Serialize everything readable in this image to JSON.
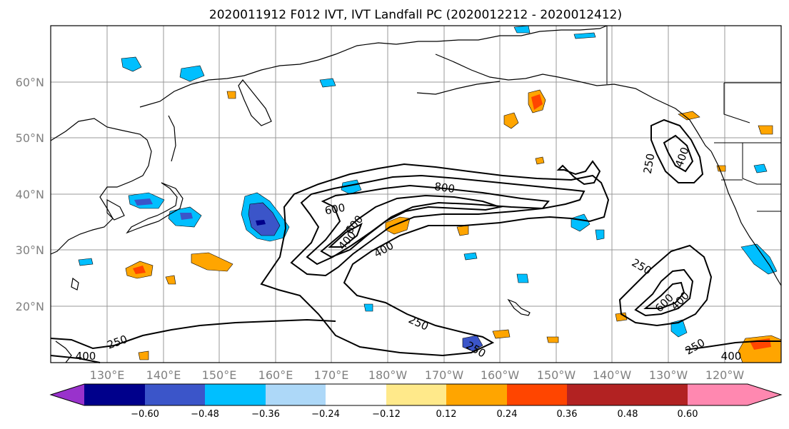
{
  "title": "2020011912 F012 IVT, IVT Landfall PC (2020012212 - 2020012412)",
  "map": {
    "lat_labels": [
      "60°N",
      "50°N",
      "40°N",
      "30°N",
      "20°N"
    ],
    "lon_labels": [
      "130°E",
      "140°E",
      "150°E",
      "160°E",
      "170°E",
      "180°W",
      "170°W",
      "160°W",
      "150°W",
      "140°W",
      "130°W",
      "120°W"
    ],
    "grid": true,
    "contour_levels": [
      250,
      400,
      600,
      800
    ],
    "contour_labels": [
      "800",
      "600",
      "600",
      "400",
      "400",
      "250",
      "250",
      "600",
      "400",
      "250",
      "400",
      "250",
      "400",
      "250",
      "400",
      "250"
    ]
  },
  "colorbar": {
    "tick_labels": [
      "−0.60",
      "−0.48",
      "−0.36",
      "−0.24",
      "−0.12",
      "0.12",
      "0.24",
      "0.36",
      "0.48",
      "0.60"
    ],
    "colors": [
      "#9932cc",
      "#00008b",
      "#3b55c9",
      "#00bfff",
      "#add8f8",
      "#ffffff",
      "#ffe98a",
      "#ffa500",
      "#ff4500",
      "#b22222",
      "#ff88b0"
    ]
  }
}
